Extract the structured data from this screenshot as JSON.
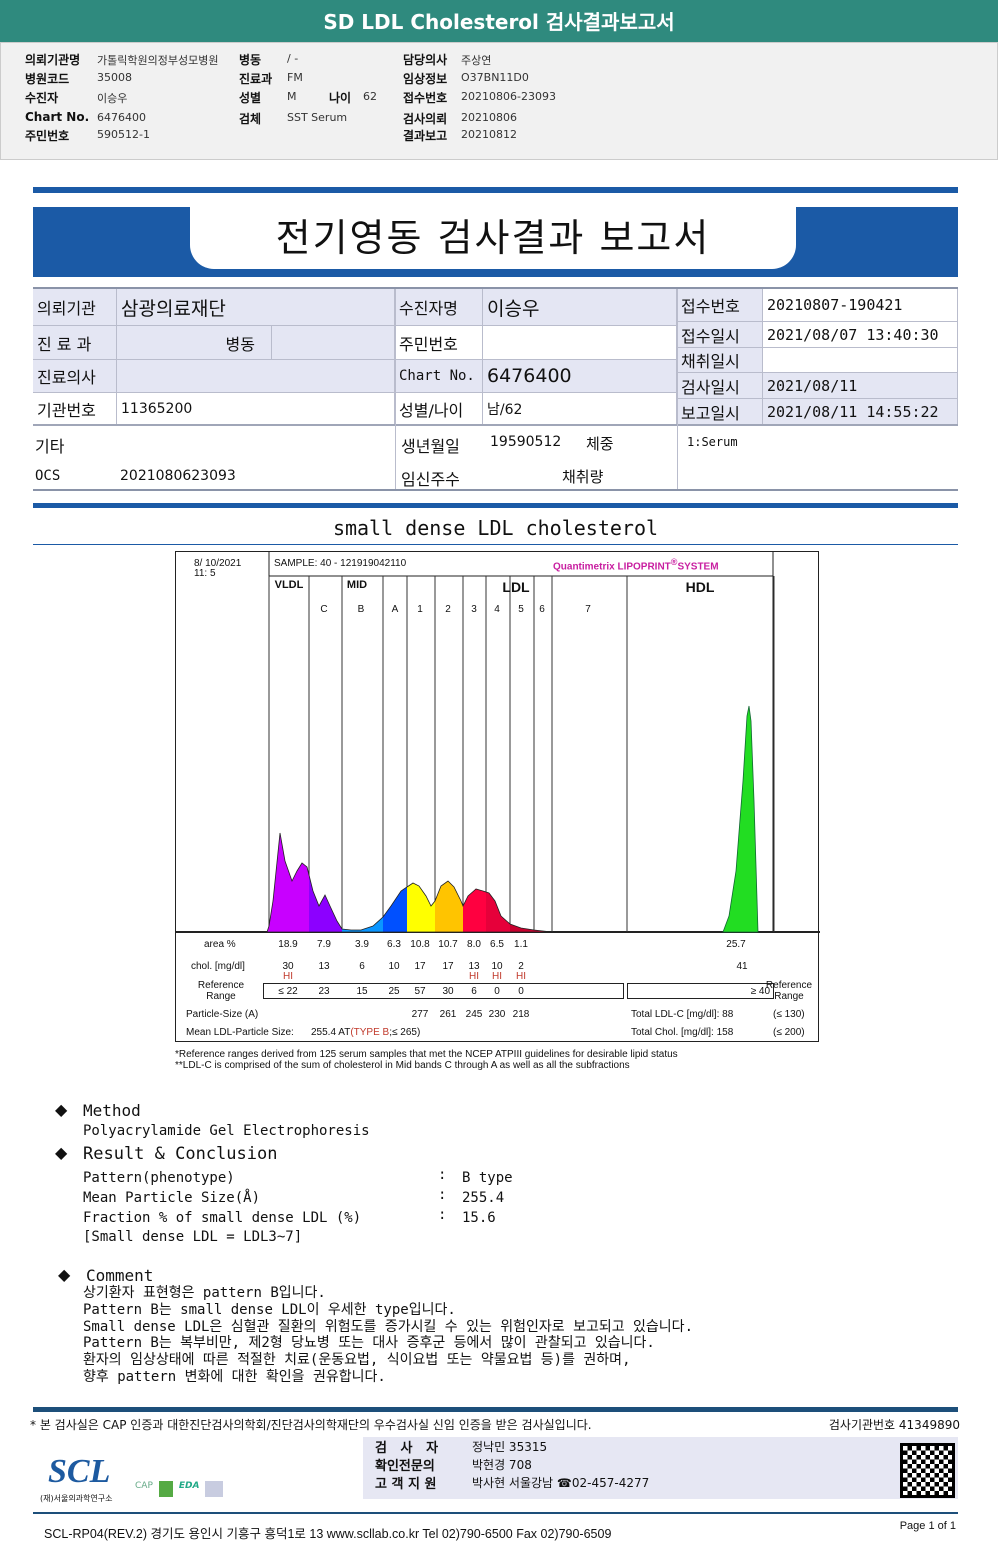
{
  "title": "SD LDL Cholesterol 검사결과보고서",
  "info": {
    "col1": [
      [
        "의뢰기관명",
        "가톨릭학원의정부성모병원"
      ],
      [
        "병원코드",
        "35008"
      ],
      [
        "수진자",
        "이승우"
      ],
      [
        "Chart No.",
        "6476400"
      ],
      [
        "주민번호",
        "590512-1"
      ]
    ],
    "col2": [
      [
        "병동",
        "/ -"
      ],
      [
        "진료과",
        "FM"
      ],
      [
        "성별",
        "M"
      ],
      [
        "검체",
        "SST Serum"
      ]
    ],
    "age": [
      "나이",
      "62"
    ],
    "col3": [
      [
        "담당의사",
        "주상연"
      ],
      [
        "임상정보",
        "O37BN11D0"
      ],
      [
        "접수번호",
        "20210806-23093"
      ],
      [
        "검사의뢰",
        "20210806"
      ],
      [
        "결과보고",
        "20210812"
      ]
    ]
  },
  "report_title": "전기영동 검사결과 보고서",
  "table": {
    "의뢰기관": "의뢰기관",
    "org": "삼광의료재단",
    "수진자명": "수진자명",
    "name": "이승우",
    "진료과": "진 료 과",
    "병동": "병동",
    "주민번호": "주민번호",
    "진료의사": "진료의사",
    "chart_label": "Chart No.",
    "chart_no": "6476400",
    "기관번호": "기관번호",
    "inst_no": "11365200",
    "성별나이": "성별/나이",
    "sex_age": "남/62",
    "기타": "기타",
    "생년월일": "생년월일",
    "birth": "19590512",
    "체중": "체중",
    "ocs_label": "OCS",
    "ocs": "2021080623093",
    "임신주수": "임신주수",
    "채취량": "채취량",
    "right": [
      [
        "접수번호",
        "20210807-190421"
      ],
      [
        "접수일시",
        "2021/08/07 13:40:30"
      ],
      [
        "채취일시",
        ""
      ],
      [
        "검사일시",
        "2021/08/11"
      ],
      [
        "보고일시",
        "2021/08/11 14:55:22"
      ]
    ],
    "specimen": "1:Serum"
  },
  "section_title": "small dense LDL cholesterol",
  "chart": {
    "date": "8/ 10/2021",
    "time": "11:  5",
    "sample": "SAMPLE:   40 - 121919042110",
    "brand": "Quantimetrix LIPOPRINT",
    "brand_mark": "®",
    "brand_suffix": "SYSTEM",
    "groups": [
      "VLDL",
      "MID",
      "LDL",
      "HDL"
    ],
    "bands": [
      "C",
      "B",
      "A",
      "1",
      "2",
      "3",
      "4",
      "5",
      "6",
      "7"
    ],
    "colors": [
      "#c800ff",
      "#8c00ff",
      "#0a96ff",
      "#0050ff",
      "#ffff00",
      "#ffc400",
      "#ff0040",
      "#e6003a",
      "#c8002e",
      "#22dd22"
    ],
    "row_labels": {
      "area": "area %",
      "chol": "chol. [mg/dl]",
      "ref": "Reference Range",
      "size": "Particle-Size (A)",
      "mean": "Mean LDL-Particle Size:",
      "ref_r": "Reference Range"
    },
    "area": [
      "18.9",
      "7.9",
      "3.9",
      "6.3",
      "10.8",
      "10.7",
      "8.0",
      "6.5",
      "1.1"
    ],
    "chol": [
      "30",
      "13",
      "6",
      "10",
      "17",
      "17",
      "13",
      "10",
      "2"
    ],
    "flags": [
      "HI",
      "",
      "",
      "",
      "",
      "",
      "HI",
      "HI",
      "HI"
    ],
    "ref": [
      "≤ 22",
      "23",
      "15",
      "25",
      "57",
      "30",
      "6",
      "0",
      "0"
    ],
    "size": [
      "",
      "",
      "",
      "",
      "277",
      "261",
      "245",
      "230",
      "218"
    ],
    "hdl_area": "25.7",
    "hdl_chol": "41",
    "hdl_ref": "≥  40",
    "mean_value": "255.4",
    "mean_type_pre": "AT",
    "mean_type": "(TYPE B",
    "mean_type_post": ";≤ 265)",
    "total_ldl": "Total LDL-C [mg/dl]:  88",
    "total_ldl_ref": "(≤ 130)",
    "total_chol": "Total Chol. [mg/dl]:     158",
    "total_chol_ref": "(≤ 200)"
  },
  "notes": [
    "*Reference ranges derived from 125 serum samples that met the NCEP ATPIII guidelines for desirable lipid status",
    "**LDL-C is comprised of the sum of cholesterol in Mid bands C through A as well as all the subfractions"
  ],
  "method": {
    "heading": "Method",
    "text": "Polyacrylamide Gel Electrophoresis"
  },
  "result": {
    "heading": "Result & Conclusion",
    "rows": [
      [
        "Pattern(phenotype)",
        "B type"
      ],
      [
        "Mean Particle Size(Å)",
        "255.4"
      ],
      [
        "Fraction % of small dense LDL (%)",
        "15.6"
      ]
    ],
    "note": "[Small dense LDL = LDL3~7]"
  },
  "comment": {
    "heading": "Comment",
    "lines": [
      "상기환자 표현형은 pattern B입니다.",
      "Pattern B는 small dense LDL이 우세한 type입니다.",
      "Small dense LDL은 심혈관 질환의 위험도를 증가시킬 수 있는 위험인자로 보고되고 있습니다.",
      "Pattern B는 복부비만, 제2형 당뇨병 또는 대사 증후군 등에서 많이 관찰되고 있습니다.",
      "환자의 임상상태에 따른 적절한 치료(운동요법, 식이요법 또는 약물요법 등)를 권하며,",
      "향후 pattern 변화에 대한 확인을 권유합니다."
    ]
  },
  "footer": {
    "cert": "* 본 검사실은 CAP 인증과 대한진단검사의학회/진단검사의학재단의 우수검사실 신임 인증을 받은 검사실입니다.",
    "lab_no": "검사기관번호  41349890",
    "staff": [
      [
        "검   사   자",
        "정낙민  35315"
      ],
      [
        "확인전문의",
        "박현경  708"
      ],
      [
        "고 객 지 원",
        "박사현  서울강남  ☎02-457-4277"
      ]
    ],
    "logo": "SCL",
    "logo_sub": "(재)서울의과학연구소",
    "address": "SCL-RP04(REV.2)  경기도 용인시 기흥구 흥덕1로 13  www.scllab.co.kr  Tel 02)790-6500  Fax 02)790-6509",
    "page": "Page 1 of 1"
  }
}
